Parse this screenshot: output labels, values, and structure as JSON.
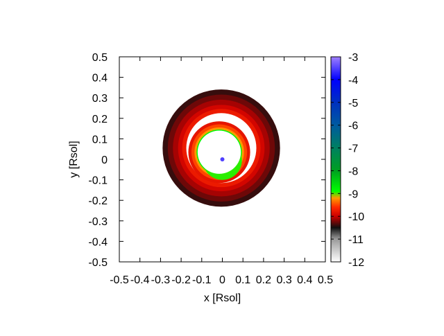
{
  "chart_data": {
    "type": "heatmap",
    "title": "",
    "xlabel": "x [Rsol]",
    "ylabel": "y [Rsol]",
    "xlim": [
      -0.5,
      0.5
    ],
    "ylim": [
      -0.5,
      0.5
    ],
    "x_ticks": [
      -0.5,
      -0.4,
      -0.3,
      -0.2,
      -0.1,
      0,
      0.1,
      0.2,
      0.3,
      0.4,
      0.5
    ],
    "x_tick_labels": [
      "-0.5",
      "-0.4",
      "-0.3",
      "-0.2",
      "-0.1",
      "0",
      "0.1",
      "0.2",
      "0.3",
      "0.4",
      "0.5"
    ],
    "y_ticks": [
      -0.5,
      -0.4,
      -0.3,
      -0.2,
      -0.1,
      0,
      0.1,
      0.2,
      0.3,
      0.4,
      0.5
    ],
    "y_tick_labels": [
      "-0.5",
      "-0.4",
      "-0.3",
      "-0.2",
      "-0.1",
      "0",
      "0.1",
      "0.2",
      "0.3",
      "0.4",
      "0.5"
    ],
    "grid": false,
    "colorbar": {
      "range": [
        -12,
        -3
      ],
      "ticks": [
        -12,
        -11,
        -10,
        -9,
        -8,
        -7,
        -6,
        -5,
        -4,
        -3
      ],
      "tick_labels": [
        "-12",
        "-11",
        "-10",
        "-9",
        "-8",
        "-7",
        "-6",
        "-5",
        "-4",
        "-3"
      ],
      "stops": [
        {
          "value": -12,
          "color": "#ffffff"
        },
        {
          "value": -11,
          "color": "#9a9a9a"
        },
        {
          "value": -10.5,
          "color": "#101010"
        },
        {
          "value": -10,
          "color": "#cc0000"
        },
        {
          "value": -9.6,
          "color": "#ff2a00"
        },
        {
          "value": -9.2,
          "color": "#ff9a00"
        },
        {
          "value": -8.9,
          "color": "#00ff00"
        },
        {
          "value": -8,
          "color": "#00a020"
        },
        {
          "value": -7,
          "color": "#008060"
        },
        {
          "value": -6,
          "color": "#005aa0"
        },
        {
          "value": -5,
          "color": "#0030c0"
        },
        {
          "value": -4,
          "color": "#0000ff"
        },
        {
          "value": -3,
          "color": "#a080ff"
        }
      ]
    },
    "outer_ring": {
      "center": [
        -0.005,
        0.055
      ],
      "r_outer": 0.285,
      "r_inner": 0.17,
      "bands": [
        {
          "r": 0.285,
          "value": -10.4
        },
        {
          "r": 0.26,
          "value": -10.25
        },
        {
          "r": 0.235,
          "value": -10.1
        },
        {
          "r": 0.21,
          "value": -9.95
        },
        {
          "r": 0.19,
          "value": -9.75
        }
      ]
    },
    "inner_ring": {
      "center": [
        -0.015,
        0.035
      ],
      "r_outer": 0.15,
      "r_inner": 0.105,
      "bands": [
        {
          "r": 0.15,
          "value": -9.8
        },
        {
          "r": 0.135,
          "value": -9.5
        },
        {
          "r": 0.12,
          "value": -9.2
        },
        {
          "r": 0.11,
          "value": -8.85
        }
      ]
    },
    "inner_ring_shadow": {
      "center": [
        0.0,
        -0.005
      ],
      "r": 0.095,
      "value": -8.95
    },
    "center_point": {
      "x": 0,
      "y": 0,
      "value": -3.5
    }
  }
}
